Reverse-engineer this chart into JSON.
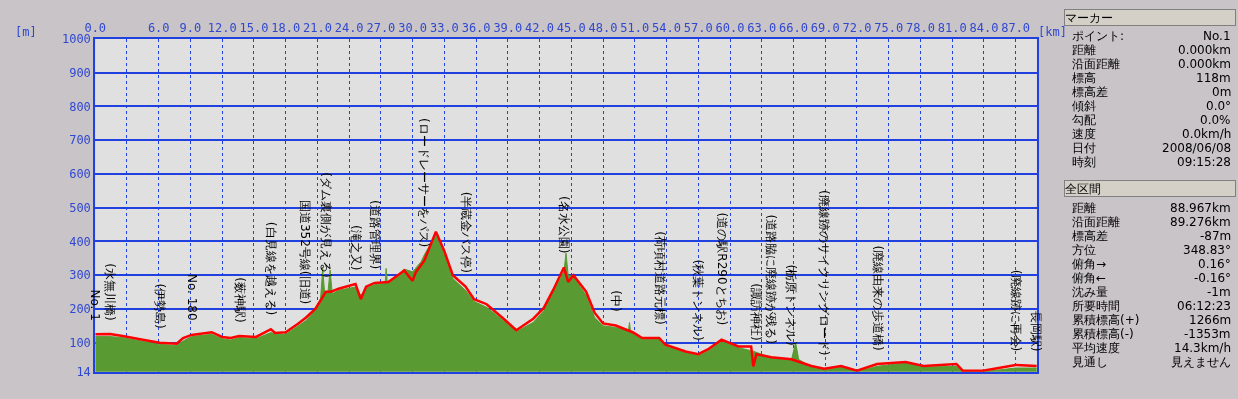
{
  "chart_data": [
    {
      "type": "area",
      "xlabel": "[km]",
      "ylabel": "[m]",
      "xlim": [
        0,
        89
      ],
      "xticks": [
        {
          "value": 0,
          "label": "0.0"
        },
        {
          "value": 3,
          "label": null
        },
        {
          "value": 6,
          "label": "6.0"
        },
        {
          "value": 9,
          "label": "9.0"
        },
        {
          "value": 12,
          "label": "12.0"
        },
        {
          "value": 15,
          "label": "15.0"
        },
        {
          "value": 18,
          "label": "18.0"
        },
        {
          "value": 21,
          "label": "21.0"
        },
        {
          "value": 24,
          "label": "24.0"
        },
        {
          "value": 27,
          "label": "27.0"
        },
        {
          "value": 30,
          "label": "30.0"
        },
        {
          "value": 33,
          "label": "33.0"
        },
        {
          "value": 36,
          "label": "36.0"
        },
        {
          "value": 39,
          "label": "39.0"
        },
        {
          "value": 42,
          "label": "42.0"
        },
        {
          "value": 45,
          "label": "45.0"
        },
        {
          "value": 48,
          "label": "48.0"
        },
        {
          "value": 51,
          "label": "51.0"
        },
        {
          "value": 54,
          "label": "54.0"
        },
        {
          "value": 57,
          "label": "57.0"
        },
        {
          "value": 60,
          "label": "60.0"
        },
        {
          "value": 63,
          "label": "63.0"
        },
        {
          "value": 66,
          "label": "66.0"
        },
        {
          "value": 69,
          "label": "69.0"
        },
        {
          "value": 72,
          "label": "72.0"
        },
        {
          "value": 75,
          "label": "75.0"
        },
        {
          "value": 78,
          "label": "78.0"
        },
        {
          "value": 81,
          "label": "81.0"
        },
        {
          "value": 84,
          "label": "84.0"
        },
        {
          "value": 87,
          "label": "87.0"
        }
      ],
      "ylim": [
        14,
        1000
      ],
      "yticks": [
        14,
        100,
        200,
        300,
        400,
        500,
        600,
        700,
        800,
        900,
        1000
      ],
      "grid": true,
      "series": [
        {
          "type": "area",
          "color": "#5a9a32",
          "x": [
            0,
            1.4,
            2.6,
            4.5,
            6.1,
            7.7,
            8.3,
            9.1,
            11,
            12,
            12.8,
            13.6,
            15.2,
            16.6,
            17,
            18,
            19.2,
            19.9,
            20.8,
            21.3,
            21.5,
            21.7,
            22.0,
            22.2,
            22.4,
            23,
            24.6,
            25.1,
            25.6,
            26.4,
            27.4,
            27.5,
            27.6,
            28.6,
            29.2,
            30,
            30.8,
            31.1,
            32.2,
            33,
            33.8,
            35,
            35.8,
            37,
            38.6,
            39.8,
            41.4,
            42.4,
            43.3,
            44.3,
            44.5,
            44.7,
            45.2,
            46.4,
            47.2,
            48,
            49.2,
            50.4,
            50.5,
            50.6,
            51.7,
            53.3,
            53.9,
            55.8,
            57,
            57.9,
            59.2,
            60.8,
            62.2,
            63.9,
            65.8,
            66.2,
            66.5,
            67.7,
            68.9,
            70.5,
            72,
            73.9,
            76.6,
            78.3,
            81.4,
            82,
            83.9,
            87,
            89
          ],
          "values": [
            118,
            118,
            115,
            104,
            95,
            92,
            105,
            118,
            125,
            112,
            108,
            115,
            112,
            130,
            125,
            125,
            150,
            165,
            195,
            230,
            320,
            240,
            250,
            315,
            245,
            255,
            265,
            240,
            262,
            272,
            275,
            320,
            278,
            295,
            318,
            310,
            340,
            360,
            420,
            360,
            290,
            255,
            222,
            205,
            165,
            133,
            160,
            195,
            250,
            310,
            365,
            300,
            295,
            240,
            175,
            150,
            145,
            135,
            160,
            132,
            110,
            110,
            90,
            70,
            62,
            75,
            105,
            85,
            75,
            55,
            48,
            100,
            50,
            28,
            20,
            28,
            14,
            30,
            40,
            28,
            30,
            14,
            14,
            25,
            25
          ]
        },
        {
          "type": "line",
          "color": "#ff0000",
          "x": [
            0,
            1.4,
            2.6,
            4.5,
            6.1,
            7.7,
            8.3,
            9.1,
            11,
            12,
            12.8,
            13.6,
            15.2,
            16.6,
            17,
            18,
            19.2,
            19.9,
            20.8,
            21.8,
            22.3,
            23,
            24.6,
            25.1,
            25.6,
            26.4,
            27.7,
            28.6,
            29.2,
            30,
            30.3,
            31.1,
            32.2,
            33,
            33.8,
            35,
            35.8,
            37,
            38.6,
            39.8,
            41.4,
            42.4,
            43.3,
            44.3,
            44.7,
            45.2,
            46.4,
            47.2,
            48,
            49.2,
            50.8,
            51.7,
            53.3,
            53.9,
            55.8,
            57,
            57.9,
            59.2,
            60.8,
            62.0,
            62.2,
            62.5,
            63.9,
            65.8,
            67.7,
            68.9,
            70.5,
            72,
            73.9,
            76.6,
            78.3,
            81.4,
            82,
            83.9,
            87,
            89
          ],
          "values": [
            125,
            126,
            120,
            109,
            100,
            97,
            114,
            123,
            131,
            117,
            114,
            120,
            117,
            140,
            129,
            131,
            157,
            174,
            200,
            251,
            251,
            260,
            274,
            229,
            266,
            277,
            280,
            300,
            314,
            283,
            309,
            343,
            429,
            371,
            300,
            266,
            229,
            214,
            171,
            137,
            171,
            203,
            257,
            323,
            280,
            300,
            251,
            189,
            157,
            151,
            131,
            114,
            114,
            94,
            74,
            66,
            80,
            109,
            89,
            89,
            30,
            66,
            57,
            51,
            31,
            23,
            31,
            17,
            37,
            43,
            31,
            37,
            17,
            17,
            34,
            31
          ]
        }
      ],
      "annotations": [
        {
          "text": "No. 1",
          "x": 0,
          "y": 125
        },
        {
          "text": "(水無川橋)",
          "x": 1.4,
          "y": 126
        },
        {
          "text": "(伊勢島)",
          "x": 6.1,
          "y": 100
        },
        {
          "text": "No. 180",
          "x": 9.1,
          "y": 123
        },
        {
          "text": "(薮神駅)",
          "x": 13.6,
          "y": 120
        },
        {
          "text": "(白見線を越える)",
          "x": 16.6,
          "y": 140
        },
        {
          "text": "国道352号線(旧道)",
          "x": 19.9,
          "y": 174
        },
        {
          "text": "(ダム裏側が見える)",
          "x": 21.8,
          "y": 251
        },
        {
          "text": "(滝之又)",
          "x": 24.6,
          "y": 274
        },
        {
          "text": "(道路管理界)",
          "x": 26.4,
          "y": 277
        },
        {
          "text": "(ロードレーサーをパス)",
          "x": 31.1,
          "y": 343
        },
        {
          "text": "(半蔵金バス停)",
          "x": 35,
          "y": 266
        },
        {
          "text": "(名水公園)",
          "x": 44.3,
          "y": 323
        },
        {
          "text": "(中)",
          "x": 49.2,
          "y": 151
        },
        {
          "text": "(荷頃村道路元標)",
          "x": 53.3,
          "y": 114
        },
        {
          "text": "(秋葉トンネル)",
          "x": 57,
          "y": 66
        },
        {
          "text": "(道の駅R290とちお)",
          "x": 59.2,
          "y": 109
        },
        {
          "text": "(諏訪神社)",
          "x": 62.5,
          "y": 66
        },
        {
          "text": "(道路脇に廃線跡が残る)",
          "x": 63.9,
          "y": 57
        },
        {
          "text": "(栃原トンネル)",
          "x": 65.8,
          "y": 51
        },
        {
          "text": "(廃線跡のサイクリングロード)",
          "x": 68.9,
          "y": 23
        },
        {
          "text": "(廃線由来の歩道橋)",
          "x": 73.9,
          "y": 37
        },
        {
          "text": "(廃線跡に再会)",
          "x": 87,
          "y": 34
        },
        {
          "text": "長岡駅)",
          "x": 89,
          "y": 31
        }
      ]
    },
    {
      "type": "other",
      "title": "マーカー",
      "annotations": [
        "ポイント:",
        "No.1",
        "距離",
        "0.000km",
        "沿面距離",
        "0.000km",
        "標高",
        "118m",
        "標高差",
        "0m",
        "傾斜",
        "0.0°",
        "勾配",
        "0.0%",
        "速度",
        "0.0km/h",
        "日付",
        "2008/06/08",
        "時刻",
        "09:15:28"
      ]
    },
    {
      "type": "other",
      "title": "全区間",
      "annotations": [
        "距離",
        "88.967km",
        "沿面距離",
        "89.276km",
        "標高差",
        "-87m",
        "方位",
        "348.83°",
        "俯角→",
        "0.16°",
        "俯角←",
        "-0.16°",
        "沈み量",
        "-1m",
        "所要時間",
        "06:12:23",
        "累積標高(+)",
        "1266m",
        "累積標高(-)",
        "-1353m",
        "平均速度",
        "14.3km/h",
        "見通し",
        "見えません"
      ]
    }
  ]
}
